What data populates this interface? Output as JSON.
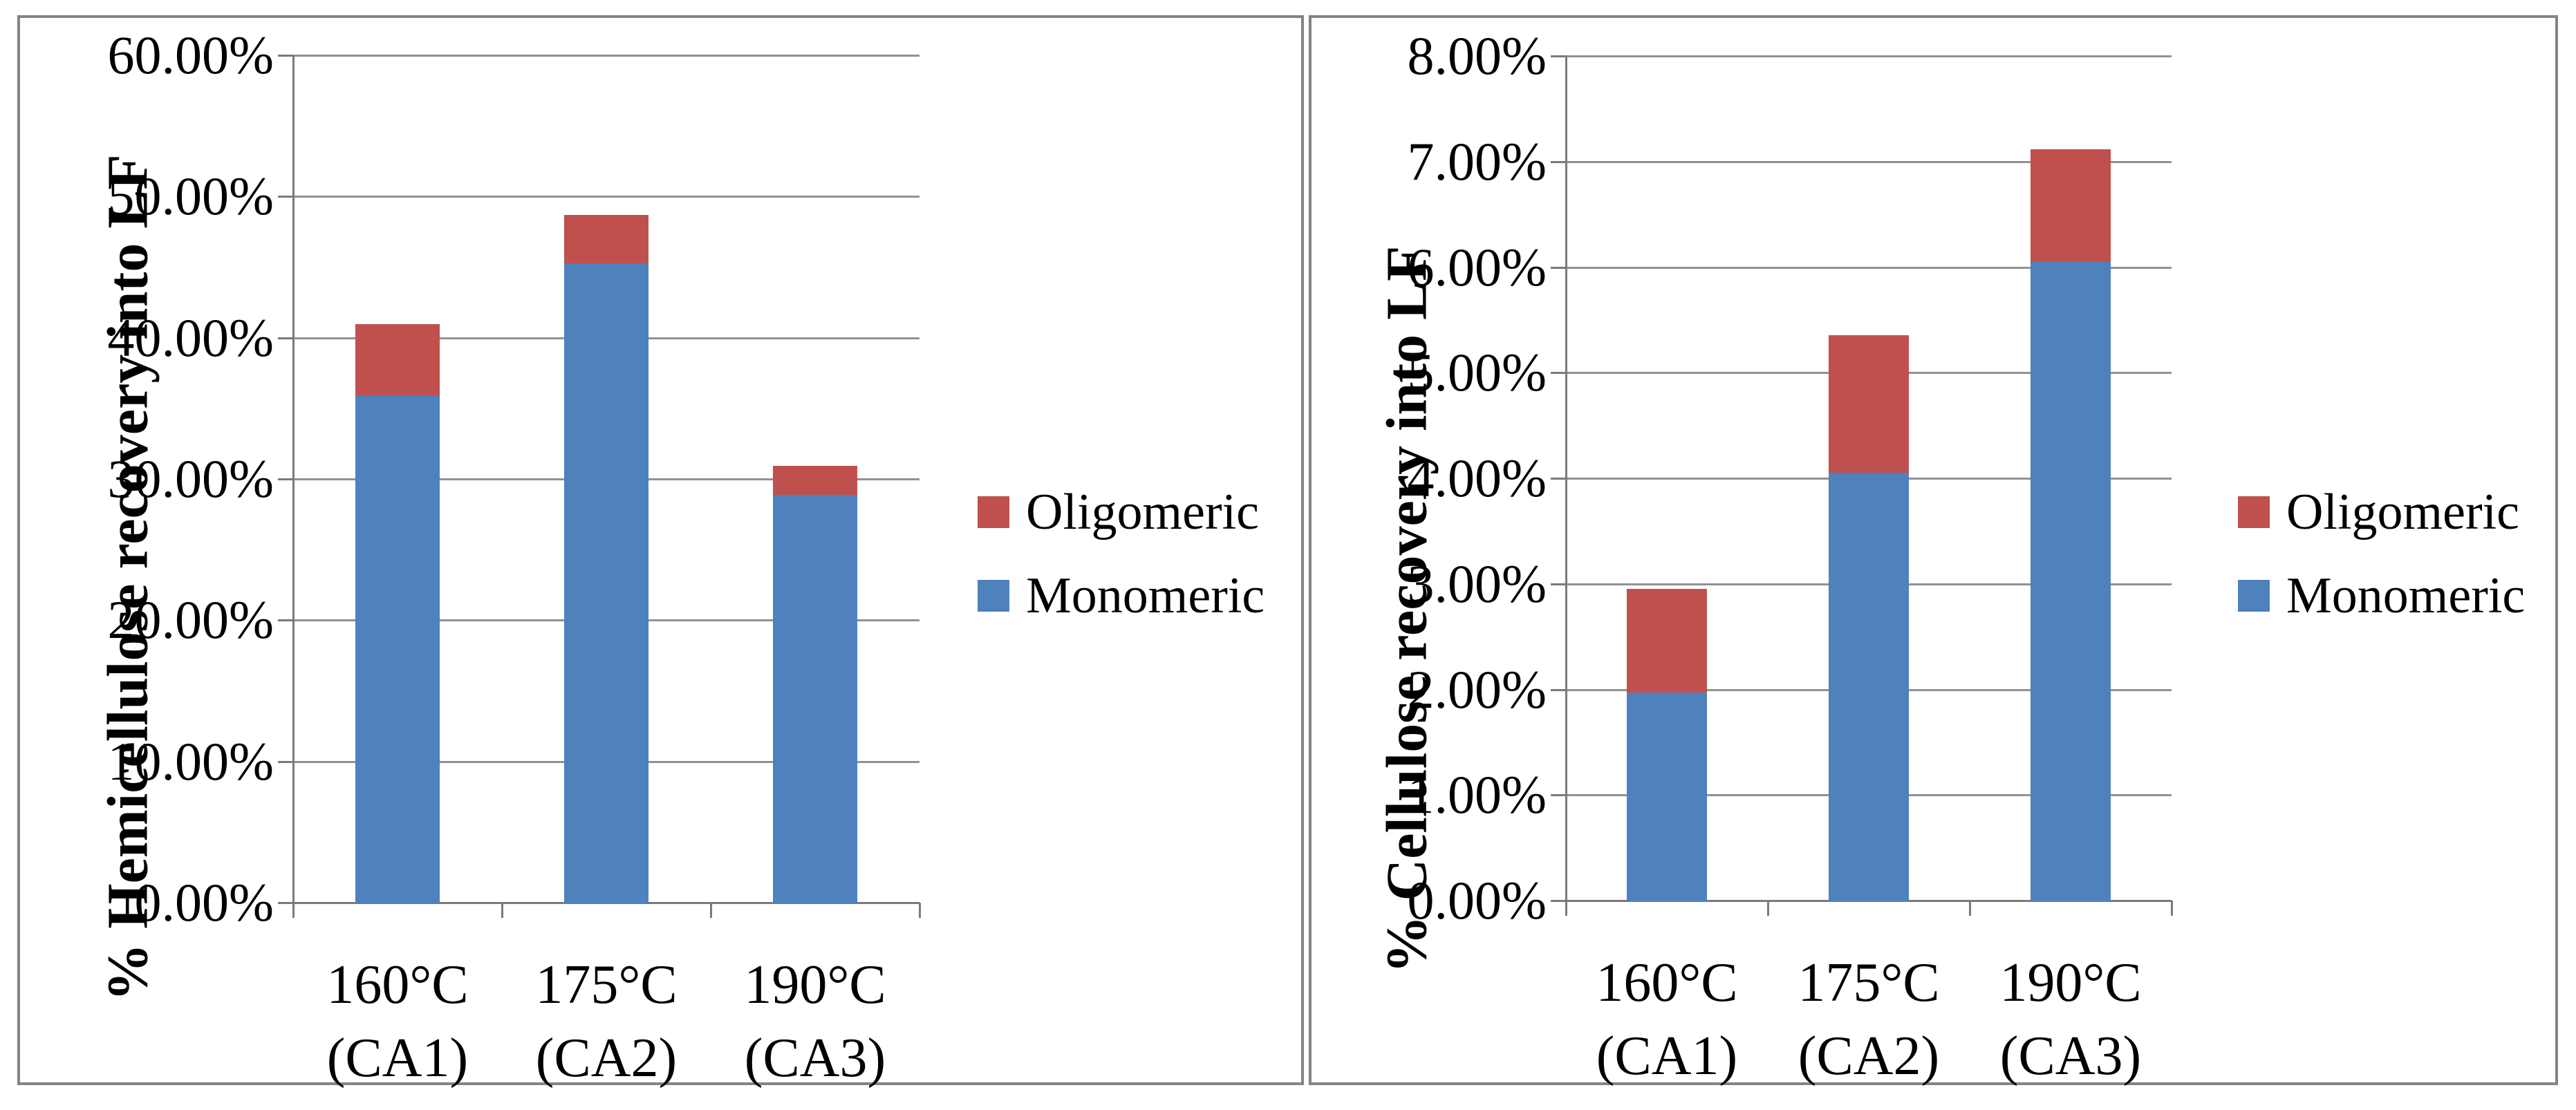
{
  "figure": {
    "description": "Two side-by-side stacked bar charts of recovery into LF at three pretreatment temperatures",
    "background": "#ffffff",
    "panel_border_color": "#848484"
  },
  "colors": {
    "monomeric": "#4F81BD",
    "oligomeric": "#C0504D",
    "gridline": "#919191",
    "axis": "#7a7a7a",
    "text": "#000000"
  },
  "legend": {
    "items": [
      {
        "label": "Oligomeric",
        "color": "#C0504D"
      },
      {
        "label": "Monomeric",
        "color": "#4F81BD"
      }
    ]
  },
  "chart_data": [
    {
      "type": "bar",
      "stacked": true,
      "title": "",
      "xlabel": "",
      "ylabel": "% Hemicellulose recovery into LF",
      "categories": [
        [
          "160°C",
          "(CA1)"
        ],
        [
          "175°C",
          "(CA2)"
        ],
        [
          "190°C",
          "(CA3)"
        ]
      ],
      "series": [
        {
          "name": "Monomeric",
          "color": "#4F81BD",
          "values": [
            35.9,
            45.25,
            28.85
          ]
        },
        {
          "name": "Oligomeric",
          "color": "#C0504D",
          "values": [
            5.05,
            3.45,
            2.05
          ]
        }
      ],
      "stack_totals": [
        40.95,
        48.7,
        30.9
      ],
      "ylim": [
        0,
        60
      ],
      "ytick_step": 10,
      "ytick_labels": [
        "60.00%",
        "50.00%",
        "40.00%",
        "30.00%",
        "20.00%",
        "10.00%",
        "0.00%"
      ],
      "grid": true,
      "legend_position": "right"
    },
    {
      "type": "bar",
      "stacked": true,
      "title": "",
      "xlabel": "",
      "ylabel": "% Cellulose recovery into LF",
      "categories": [
        [
          "160°C",
          "(CA1)"
        ],
        [
          "175°C",
          "(CA2)"
        ],
        [
          "190°C",
          "(CA3)"
        ]
      ],
      "series": [
        {
          "name": "Monomeric",
          "color": "#4F81BD",
          "values": [
            1.97,
            4.05,
            6.05
          ]
        },
        {
          "name": "Oligomeric",
          "color": "#C0504D",
          "values": [
            0.98,
            1.3,
            1.07
          ]
        }
      ],
      "stack_totals": [
        2.95,
        5.35,
        7.12
      ],
      "ylim": [
        0,
        8
      ],
      "ytick_step": 1,
      "ytick_labels": [
        "8.00%",
        "7.00%",
        "6.00%",
        "5.00%",
        "4.00%",
        "3.00%",
        "2.00%",
        "1.00%",
        "0.00%"
      ],
      "grid": true,
      "legend_position": "right"
    }
  ]
}
